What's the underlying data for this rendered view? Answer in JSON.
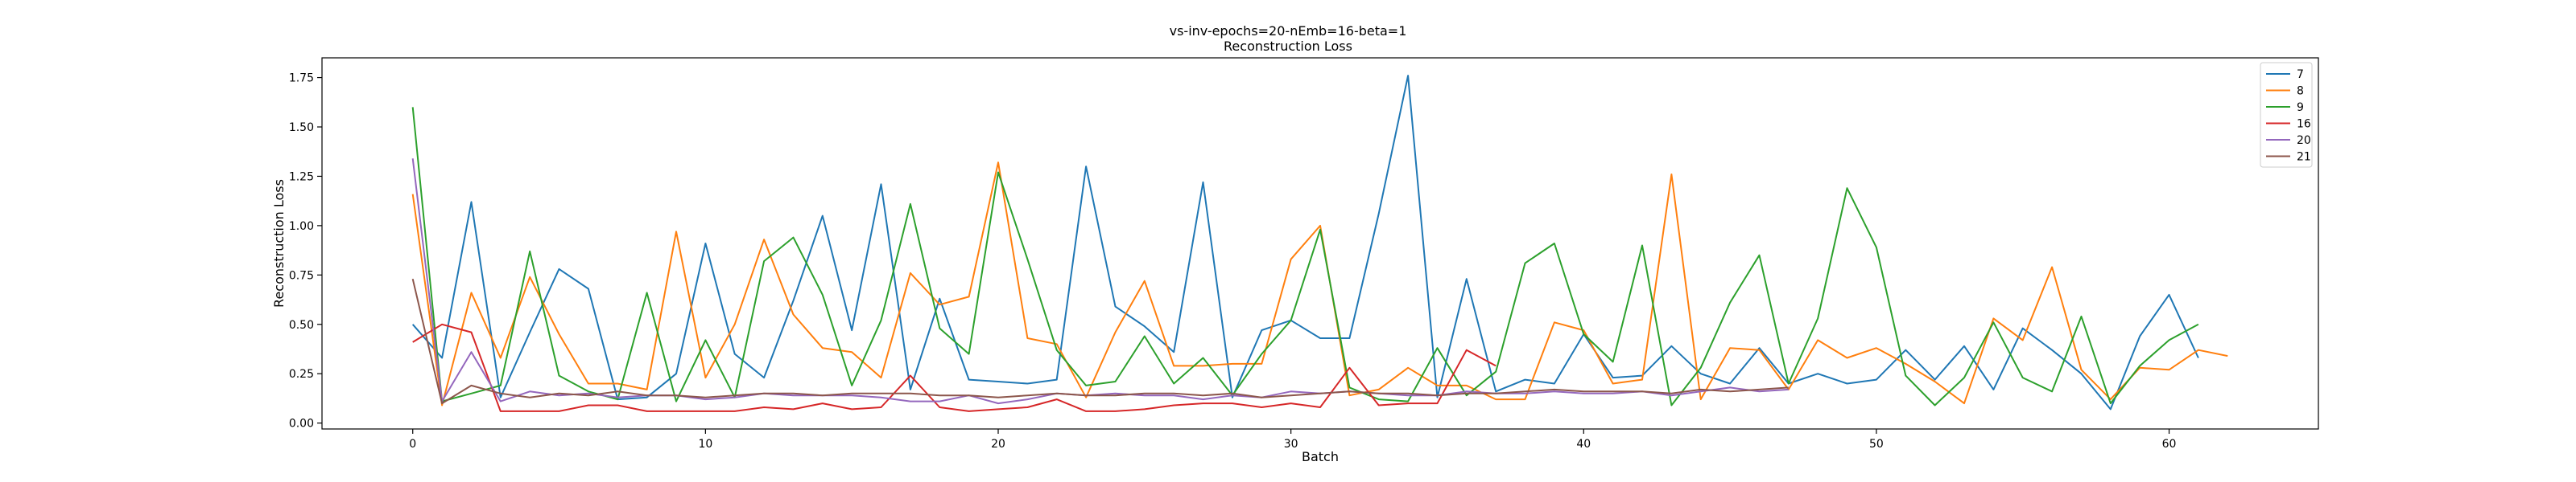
{
  "chart_data": {
    "type": "line",
    "title": "vs-inv-epochs=20-nEmb=16-beta=1",
    "subtitle": "Reconstruction Loss",
    "xlabel": "Batch",
    "ylabel": "Reconstruction Loss",
    "xlim": [
      -3.1,
      65.1
    ],
    "ylim": [
      -0.03,
      1.85
    ],
    "xticks": [
      0,
      10,
      20,
      30,
      40,
      50,
      60
    ],
    "yticks": [
      0.0,
      0.25,
      0.5,
      0.75,
      1.0,
      1.25,
      1.5,
      1.75
    ],
    "grid": false,
    "legend_position": "top-right",
    "series": [
      {
        "name": "7",
        "color": "#1f77b4",
        "values": [
          0.5,
          0.33,
          1.12,
          0.13,
          0.46,
          0.78,
          0.68,
          0.12,
          0.13,
          0.25,
          0.91,
          0.35,
          0.23,
          0.62,
          1.05,
          0.47,
          1.21,
          0.17,
          0.63,
          0.22,
          0.21,
          0.2,
          0.22,
          1.3,
          0.59,
          0.49,
          0.36,
          1.22,
          0.13,
          0.47,
          0.52,
          0.43,
          0.43,
          1.06,
          1.76,
          0.13,
          0.73,
          0.16,
          0.22,
          0.2,
          0.45,
          0.23,
          0.24,
          0.39,
          0.25,
          0.2,
          0.38,
          0.2,
          0.25,
          0.2,
          0.22,
          0.37,
          0.22,
          0.39,
          0.17,
          0.48,
          0.37,
          0.25,
          0.07,
          0.44,
          0.65,
          0.33
        ]
      },
      {
        "name": "8",
        "color": "#ff7f0e",
        "values": [
          1.16,
          0.09,
          0.66,
          0.33,
          0.74,
          0.45,
          0.2,
          0.2,
          0.17,
          0.97,
          0.23,
          0.5,
          0.93,
          0.55,
          0.38,
          0.36,
          0.23,
          0.76,
          0.6,
          0.64,
          1.32,
          0.43,
          0.4,
          0.13,
          0.46,
          0.72,
          0.29,
          0.29,
          0.3,
          0.3,
          0.83,
          1.0,
          0.14,
          0.17,
          0.28,
          0.19,
          0.19,
          0.12,
          0.12,
          0.51,
          0.47,
          0.2,
          0.22,
          1.26,
          0.12,
          0.38,
          0.37,
          0.17,
          0.42,
          0.33,
          0.38,
          0.3,
          0.21,
          0.1,
          0.53,
          0.42,
          0.79,
          0.27,
          0.12,
          0.28,
          0.27,
          0.37,
          0.34
        ]
      },
      {
        "name": "9",
        "color": "#2ca02c",
        "values": [
          1.6,
          0.11,
          0.15,
          0.19,
          0.87,
          0.24,
          0.16,
          0.12,
          0.66,
          0.11,
          0.42,
          0.13,
          0.82,
          0.94,
          0.65,
          0.19,
          0.52,
          1.11,
          0.48,
          0.35,
          1.27,
          0.83,
          0.37,
          0.19,
          0.21,
          0.44,
          0.2,
          0.33,
          0.14,
          0.35,
          0.52,
          0.98,
          0.18,
          0.12,
          0.11,
          0.38,
          0.14,
          0.26,
          0.81,
          0.91,
          0.45,
          0.31,
          0.9,
          0.09,
          0.28,
          0.61,
          0.85,
          0.2,
          0.53,
          1.19,
          0.89,
          0.24,
          0.09,
          0.23,
          0.51,
          0.23,
          0.16,
          0.54,
          0.1,
          0.29,
          0.42,
          0.5
        ]
      },
      {
        "name": "16",
        "color": "#d62728",
        "values": [
          0.41,
          0.5,
          0.46,
          0.06,
          0.06,
          0.06,
          0.09,
          0.09,
          0.06,
          0.06,
          0.06,
          0.06,
          0.08,
          0.07,
          0.1,
          0.07,
          0.08,
          0.24,
          0.08,
          0.06,
          0.07,
          0.08,
          0.12,
          0.06,
          0.06,
          0.07,
          0.09,
          0.1,
          0.1,
          0.08,
          0.1,
          0.08,
          0.28,
          0.09,
          0.1,
          0.1,
          0.37,
          0.29
        ]
      },
      {
        "name": "20",
        "color": "#9467bd",
        "values": [
          1.34,
          0.11,
          0.36,
          0.11,
          0.16,
          0.14,
          0.15,
          0.13,
          0.14,
          0.14,
          0.12,
          0.13,
          0.15,
          0.14,
          0.14,
          0.14,
          0.13,
          0.11,
          0.11,
          0.14,
          0.1,
          0.12,
          0.15,
          0.14,
          0.15,
          0.14,
          0.14,
          0.12,
          0.14,
          0.13,
          0.16,
          0.15,
          0.16,
          0.15,
          0.14,
          0.14,
          0.16,
          0.15,
          0.15,
          0.16,
          0.15,
          0.15,
          0.16,
          0.14,
          0.16,
          0.18,
          0.16,
          0.17
        ]
      },
      {
        "name": "21",
        "color": "#8c564b",
        "values": [
          0.73,
          0.1,
          0.19,
          0.15,
          0.13,
          0.15,
          0.14,
          0.16,
          0.14,
          0.14,
          0.13,
          0.14,
          0.15,
          0.15,
          0.14,
          0.15,
          0.15,
          0.15,
          0.14,
          0.14,
          0.13,
          0.14,
          0.15,
          0.14,
          0.14,
          0.15,
          0.15,
          0.14,
          0.15,
          0.13,
          0.14,
          0.15,
          0.16,
          0.15,
          0.15,
          0.14,
          0.15,
          0.15,
          0.16,
          0.17,
          0.16,
          0.16,
          0.16,
          0.15,
          0.17,
          0.16,
          0.17,
          0.18
        ]
      }
    ]
  }
}
